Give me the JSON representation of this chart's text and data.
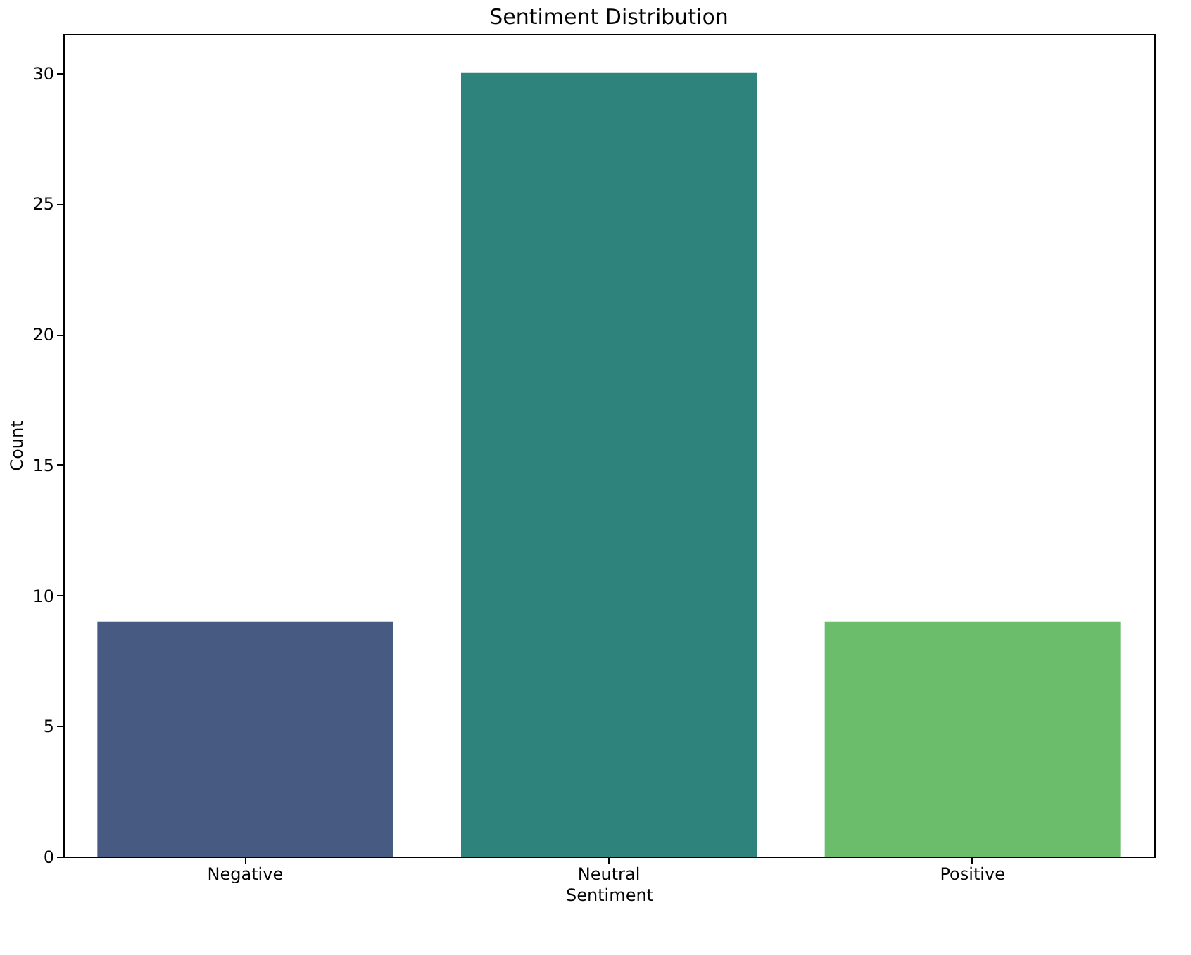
{
  "chart_data": {
    "type": "bar",
    "title": "Sentiment Distribution",
    "xlabel": "Sentiment",
    "ylabel": "Count",
    "categories": [
      "Negative",
      "Neutral",
      "Positive"
    ],
    "values": [
      9,
      30,
      9
    ],
    "colors": [
      "#475a82",
      "#2e837c",
      "#6bbd6c"
    ],
    "ylim": [
      0,
      31.5
    ],
    "yticks": [
      0,
      5,
      10,
      15,
      20,
      25,
      30
    ],
    "grid": false,
    "legend": false
  }
}
